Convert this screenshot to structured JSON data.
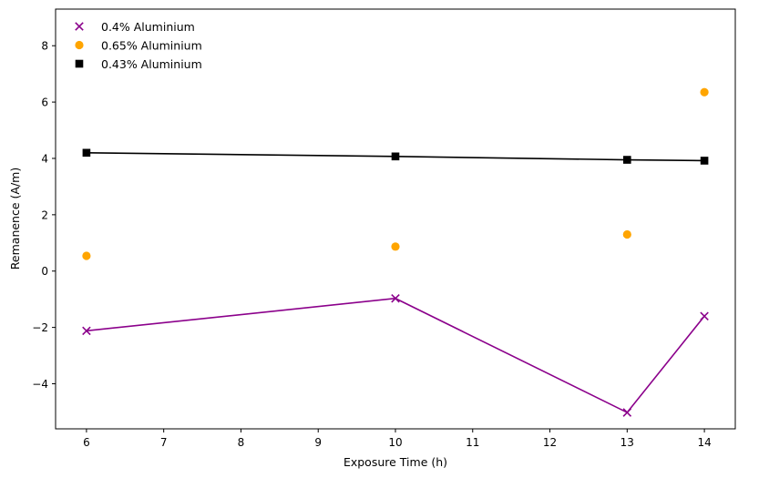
{
  "chart_data": {
    "type": "line",
    "title": "",
    "xlabel": "Exposure Time (h)",
    "ylabel": "Remanence (A/m)",
    "xlim": [
      5.6,
      14.4
    ],
    "ylim": [
      -5.6,
      9.3
    ],
    "xticks": [
      6,
      7,
      8,
      9,
      10,
      11,
      12,
      13,
      14
    ],
    "yticks": [
      -4,
      -2,
      0,
      2,
      4,
      6,
      8
    ],
    "grid": false,
    "legend_position": "top-left",
    "series": [
      {
        "name": "0.4% Aluminium",
        "marker": "x",
        "color": "#8b008b",
        "line": true,
        "x": [
          6,
          10,
          13,
          14
        ],
        "y": [
          -2.12,
          -0.97,
          -5.02,
          -1.6
        ]
      },
      {
        "name": "0.65% Aluminium",
        "marker": "circle",
        "color": "#ffa500",
        "line": false,
        "x": [
          6,
          10,
          13,
          14
        ],
        "y": [
          0.54,
          0.87,
          1.3,
          6.35
        ]
      },
      {
        "name": "0.43% Aluminium",
        "marker": "square",
        "color": "#000000",
        "line": true,
        "x": [
          6,
          10,
          13,
          14
        ],
        "y": [
          4.2,
          4.07,
          3.95,
          3.92
        ]
      }
    ]
  }
}
